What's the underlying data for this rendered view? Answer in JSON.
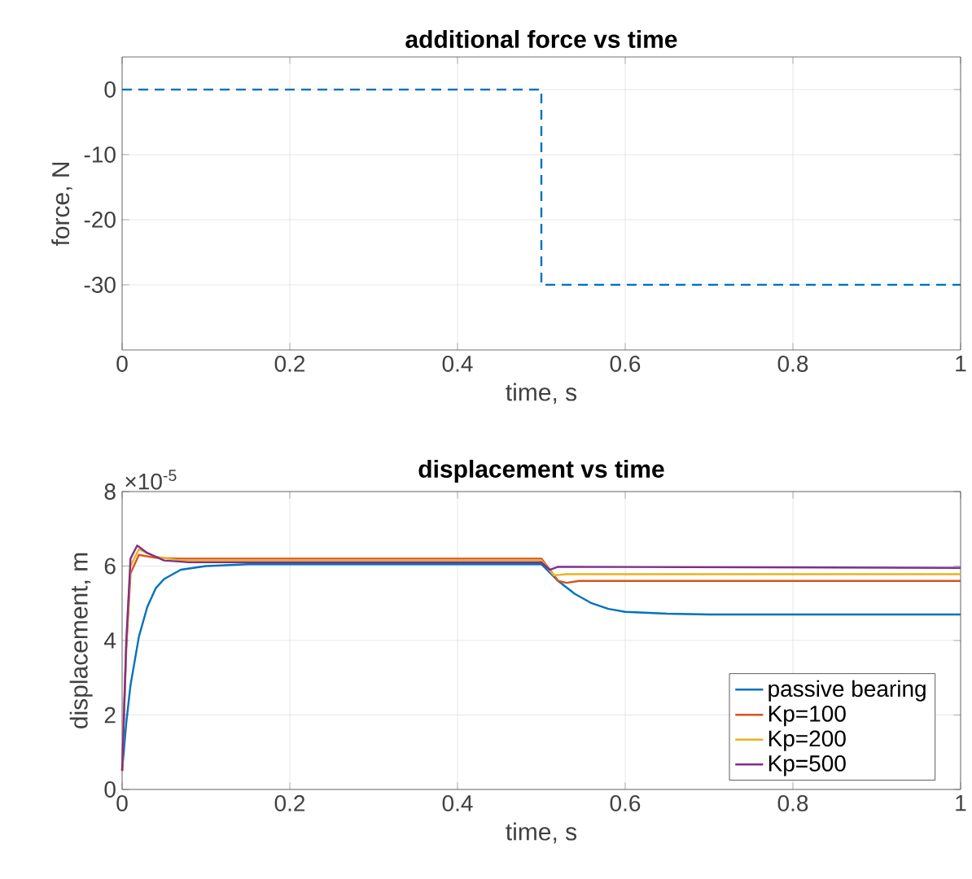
{
  "chart_data": [
    {
      "type": "line",
      "title": "additional force vs time",
      "xlabel": "time, s",
      "ylabel": "force, N",
      "x": [
        0,
        0.5,
        0.5,
        1
      ],
      "values": [
        0,
        0,
        -30,
        -30
      ],
      "color": "#0072bd",
      "line_style": "dashed",
      "xlim": [
        0,
        1
      ],
      "ylim": [
        -40,
        5
      ],
      "xticks": [
        0,
        0.2,
        0.4,
        0.6,
        0.8,
        1
      ],
      "yticks": [
        -30,
        -20,
        -10,
        0
      ],
      "grid": true
    },
    {
      "type": "line",
      "title": "displacement vs time",
      "xlabel": "time, s",
      "ylabel": "displacement, m",
      "annotations": [
        "×10$^{-5}$"
      ],
      "series": [
        {
          "name": "passive bearing",
          "color": "#0072bd",
          "x": [
            0,
            0.005,
            0.01,
            0.02,
            0.03,
            0.04,
            0.05,
            0.07,
            0.1,
            0.15,
            0.5,
            0.52,
            0.54,
            0.56,
            0.58,
            0.6,
            0.65,
            0.7,
            1
          ],
          "values": [
            0.5,
            1.8,
            2.8,
            4.1,
            4.9,
            5.4,
            5.65,
            5.9,
            6.0,
            6.05,
            6.05,
            5.6,
            5.25,
            5.0,
            4.85,
            4.77,
            4.72,
            4.7,
            4.7
          ]
        },
        {
          "name": "Kp=100",
          "color": "#d95319",
          "x": [
            0,
            0.005,
            0.01,
            0.02,
            0.04,
            0.07,
            0.5,
            0.52,
            0.53,
            0.545,
            1
          ],
          "values": [
            0.5,
            3.8,
            5.8,
            6.3,
            6.22,
            6.2,
            6.2,
            5.6,
            5.55,
            5.6,
            5.6
          ]
        },
        {
          "name": "Kp=200",
          "color": "#edb120",
          "x": [
            0,
            0.005,
            0.01,
            0.02,
            0.04,
            0.07,
            0.5,
            0.515,
            0.53,
            1
          ],
          "values": [
            0.5,
            4.0,
            6.0,
            6.45,
            6.25,
            6.15,
            6.15,
            5.75,
            5.78,
            5.78
          ]
        },
        {
          "name": "Kp=500",
          "color": "#7e2f8e",
          "x": [
            0,
            0.005,
            0.01,
            0.018,
            0.03,
            0.05,
            0.08,
            0.5,
            0.51,
            0.52,
            1
          ],
          "values": [
            0.5,
            4.0,
            6.2,
            6.55,
            6.35,
            6.15,
            6.1,
            6.1,
            5.9,
            5.98,
            5.95
          ]
        }
      ],
      "xlim": [
        0,
        1
      ],
      "ylim": [
        0,
        8
      ],
      "xticks": [
        0,
        0.2,
        0.4,
        0.6,
        0.8,
        1
      ],
      "yticks": [
        0,
        2,
        4,
        6,
        8
      ],
      "grid": true,
      "legend": "bottom right",
      "line_style": "solid"
    }
  ]
}
